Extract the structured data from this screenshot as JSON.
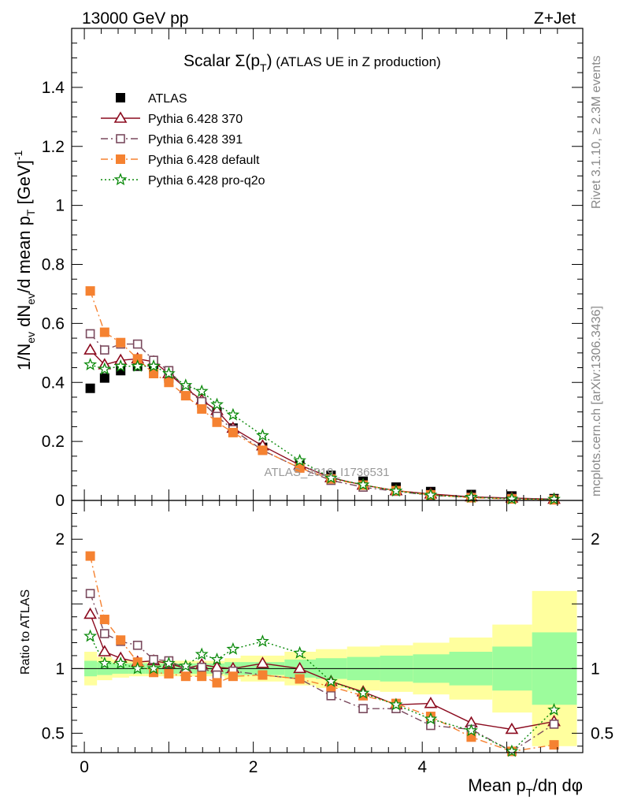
{
  "header": {
    "left": "13000 GeV pp",
    "right": "Z+Jet"
  },
  "side_labels": {
    "rivet": "Rivet 3.1.10, ≥ 2.3M events",
    "mcplots": "mcplots.cern.ch [arXiv:1306.3436]"
  },
  "watermark": "ATLAS_2019_I1736531",
  "chart_data": [
    {
      "type": "scatter",
      "title": "Scalar Σ(p_T) (ATLAS UE in Z production)",
      "xlabel": "Mean p_T/dη dφ",
      "ylabel": "1/N_ev dN_ev/d mean p_T [GeV]^-1",
      "xlim": [
        -0.15,
        5.9
      ],
      "ylim": [
        0,
        1.6
      ],
      "xticks": [
        0,
        2,
        4
      ],
      "yticks": [
        0,
        0.2,
        0.4,
        0.6,
        0.8,
        1,
        1.2,
        1.4
      ],
      "x": [
        0.07,
        0.24,
        0.43,
        0.63,
        0.82,
        1.0,
        1.2,
        1.39,
        1.57,
        1.76,
        2.11,
        2.55,
        2.92,
        3.3,
        3.69,
        4.1,
        4.58,
        5.06,
        5.56
      ],
      "legend_position": "top-left",
      "series": [
        {
          "name": "ATLAS",
          "color": "#000000",
          "marker": "square-filled",
          "line": "none",
          "values": [
            0.38,
            0.415,
            0.44,
            0.455,
            0.445,
            0.415,
            0.38,
            0.33,
            0.3,
            0.245,
            0.18,
            0.12,
            0.085,
            0.065,
            0.045,
            0.03,
            0.02,
            0.015,
            0.006
          ]
        },
        {
          "name": "Pythia 6.428 370",
          "color": "#8b0a1e",
          "marker": "triangle-open",
          "line": "solid",
          "values": [
            0.51,
            0.46,
            0.475,
            0.48,
            0.47,
            0.43,
            0.38,
            0.34,
            0.305,
            0.245,
            0.185,
            0.12,
            0.077,
            0.052,
            0.033,
            0.022,
            0.012,
            0.008,
            0.004
          ]
        },
        {
          "name": "Pythia 6.428 391",
          "color": "#7a4a5e",
          "marker": "square-open",
          "line": "dashdot",
          "values": [
            0.565,
            0.51,
            0.53,
            0.53,
            0.475,
            0.44,
            0.38,
            0.335,
            0.285,
            0.24,
            0.17,
            0.11,
            0.068,
            0.045,
            0.031,
            0.017,
            0.011,
            0.007,
            0.003
          ]
        },
        {
          "name": "Pythia 6.428 default",
          "color": "#f58231",
          "marker": "square-filled",
          "line": "dashdot",
          "values": [
            0.71,
            0.57,
            0.535,
            0.48,
            0.43,
            0.4,
            0.355,
            0.31,
            0.265,
            0.23,
            0.17,
            0.11,
            0.073,
            0.052,
            0.033,
            0.019,
            0.009,
            0.005,
            0.002
          ]
        },
        {
          "name": "Pythia 6.428 pro-q2o",
          "color": "#0b8a0b",
          "marker": "star-open",
          "line": "dotted",
          "values": [
            0.46,
            0.445,
            0.455,
            0.455,
            0.455,
            0.43,
            0.39,
            0.37,
            0.325,
            0.29,
            0.22,
            0.135,
            0.076,
            0.053,
            0.032,
            0.018,
            0.011,
            0.005,
            0.004
          ]
        }
      ]
    },
    {
      "type": "scatter",
      "ylabel": "Ratio to ATLAS",
      "xlim": [
        -0.15,
        5.9
      ],
      "ylim": [
        0.35,
        2.3
      ],
      "yticks": [
        0.5,
        1,
        2
      ],
      "bin_edges": [
        0,
        0.15,
        0.33,
        0.53,
        0.72,
        0.91,
        1.1,
        1.29,
        1.48,
        1.66,
        1.85,
        2.37,
        2.74,
        3.11,
        3.5,
        3.89,
        4.32,
        4.83,
        5.3,
        5.83
      ],
      "band_green_half": [
        0.06,
        0.05,
        0.04,
        0.04,
        0.04,
        0.04,
        0.04,
        0.04,
        0.04,
        0.05,
        0.05,
        0.07,
        0.08,
        0.09,
        0.1,
        0.11,
        0.13,
        0.17,
        0.28
      ],
      "band_yellow_half": [
        0.13,
        0.09,
        0.07,
        0.06,
        0.06,
        0.06,
        0.06,
        0.06,
        0.06,
        0.08,
        0.1,
        0.13,
        0.15,
        0.17,
        0.18,
        0.2,
        0.24,
        0.34,
        0.6
      ],
      "series": [
        {
          "name": "Pythia 6.428 370",
          "color": "#8b0a1e",
          "values": [
            1.42,
            1.13,
            1.08,
            1.05,
            1.06,
            1.04,
            1.0,
            1.03,
            1.01,
            1.0,
            1.04,
            1.0,
            0.9,
            0.82,
            0.72,
            0.73,
            0.58,
            0.53,
            0.59
          ]
        },
        {
          "name": "Pythia 6.428 391",
          "color": "#7a4a5e",
          "values": [
            1.58,
            1.27,
            1.21,
            1.18,
            1.07,
            1.06,
            1.0,
            1.01,
            0.95,
            0.98,
            0.95,
            0.92,
            0.79,
            0.69,
            0.69,
            0.56,
            0.53,
            0.32,
            0.57
          ]
        },
        {
          "name": "Pythia 6.428 default",
          "color": "#f58231",
          "values": [
            1.87,
            1.38,
            1.22,
            1.05,
            0.97,
            0.96,
            0.94,
            0.94,
            0.89,
            0.94,
            0.95,
            0.92,
            0.86,
            0.79,
            0.73,
            0.63,
            0.47,
            0.3,
            0.41
          ]
        },
        {
          "name": "Pythia 6.428 pro-q2o",
          "color": "#0b8a0b",
          "values": [
            1.25,
            1.04,
            1.04,
            1.0,
            1.0,
            1.04,
            1.02,
            1.11,
            1.07,
            1.15,
            1.21,
            1.12,
            0.9,
            0.81,
            0.72,
            0.61,
            0.52,
            0.33,
            0.68
          ]
        }
      ]
    }
  ]
}
